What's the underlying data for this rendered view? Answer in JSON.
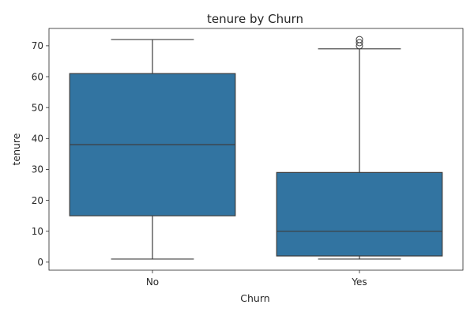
{
  "chart_data": {
    "type": "box",
    "title": "tenure by Churn",
    "xlabel": "Churn",
    "ylabel": "tenure",
    "categories": [
      "No",
      "Yes"
    ],
    "boxes": [
      {
        "category": "No",
        "whisker_low": 1,
        "q1": 15,
        "median": 38,
        "q3": 61,
        "whisker_high": 72,
        "outliers": []
      },
      {
        "category": "Yes",
        "whisker_low": 1,
        "q1": 2,
        "median": 10,
        "q3": 29,
        "whisker_high": 69,
        "outliers": [
          70,
          71,
          72
        ]
      }
    ],
    "ylim": [
      -2.6,
      75.6
    ],
    "yticks": [
      0,
      10,
      20,
      30,
      40,
      50,
      60,
      70
    ],
    "grid": false,
    "legend": "none",
    "box_color": "#3274a1",
    "line_color": "#3d3d3d"
  }
}
